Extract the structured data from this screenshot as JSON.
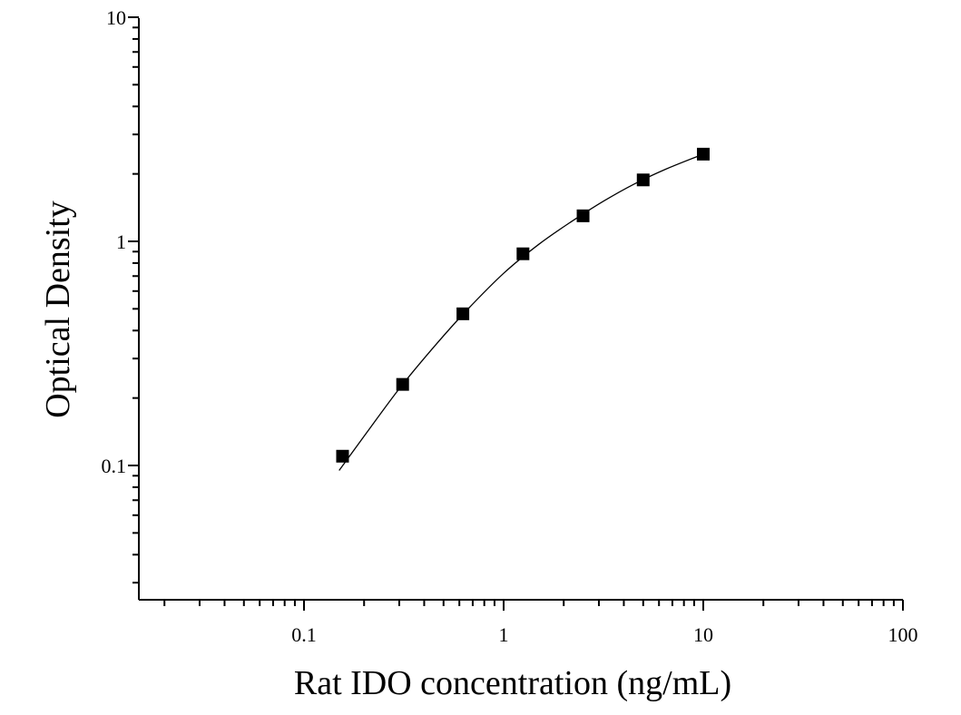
{
  "chart_data": {
    "type": "scatter",
    "title": "",
    "xlabel": "Rat IDO concentration (ng/mL)",
    "ylabel": "Optical Density",
    "x_scale": "log",
    "y_scale": "log",
    "xlim": [
      0.0195,
      100
    ],
    "ylim": [
      0.03,
      10
    ],
    "x_ticks": [
      {
        "value": 0.1,
        "label": "0.1"
      },
      {
        "value": 1,
        "label": "1"
      },
      {
        "value": 10,
        "label": "10"
      },
      {
        "value": 100,
        "label": "100"
      }
    ],
    "y_ticks": [
      {
        "value": 0.1,
        "label": "0.1"
      },
      {
        "value": 1,
        "label": "1"
      },
      {
        "value": 10,
        "label": "10"
      }
    ],
    "grid": false,
    "legend": "none",
    "marker": "filled-square",
    "color": "#000000",
    "series": [
      {
        "x": [
          0.156,
          0.312,
          0.625,
          1.25,
          2.5,
          5,
          10
        ],
        "y": [
          0.11,
          0.23,
          0.475,
          0.88,
          1.3,
          1.88,
          2.45
        ]
      }
    ],
    "fit_curve": {
      "x": [
        0.15,
        0.2,
        0.3,
        0.45,
        0.65,
        1.0,
        1.5,
        2.2,
        3.2,
        4.5,
        6.5,
        10
      ],
      "y": [
        0.095,
        0.135,
        0.22,
        0.34,
        0.49,
        0.72,
        0.97,
        1.23,
        1.52,
        1.8,
        2.1,
        2.45
      ]
    }
  }
}
